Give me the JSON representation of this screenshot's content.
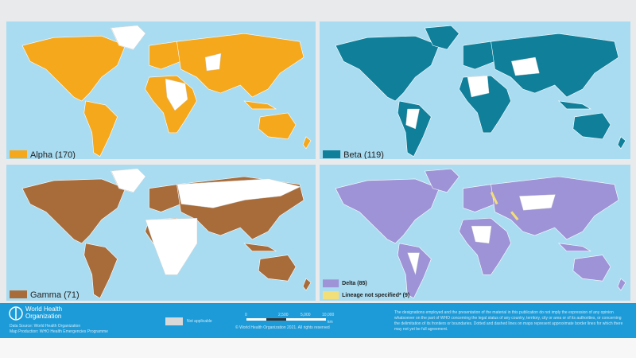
{
  "panels": [
    {
      "label": "Alpha (170)"
    },
    {
      "label": "Beta (119)"
    },
    {
      "label": "Gamma (71)"
    },
    {
      "legend": [
        "Delta (85)",
        "Lineage not specified* (9)"
      ]
    }
  ],
  "footer": {
    "org": [
      "World Health",
      "Organization"
    ],
    "source": "Data Source: World Health Organization",
    "production": "Map Production: WHO Health Emergencies Programme",
    "not_applicable": "Not applicable",
    "scale": [
      "0",
      "2,500",
      "5,000",
      "10,000",
      "km"
    ],
    "copyright": "© World Health Organization 2021. All rights reserved",
    "disclaimer": "The designations employed and the presentation of the material in this publication do not imply the expression of any opinion whatsoever on the part of WHO concerning the legal status of any country, territory, city or area or of its authorities, or concerning the delimitation of its frontiers or boundaries. Dotted and dashed lines on maps represent approximate border lines for which there may not yet be full agreement."
  }
}
